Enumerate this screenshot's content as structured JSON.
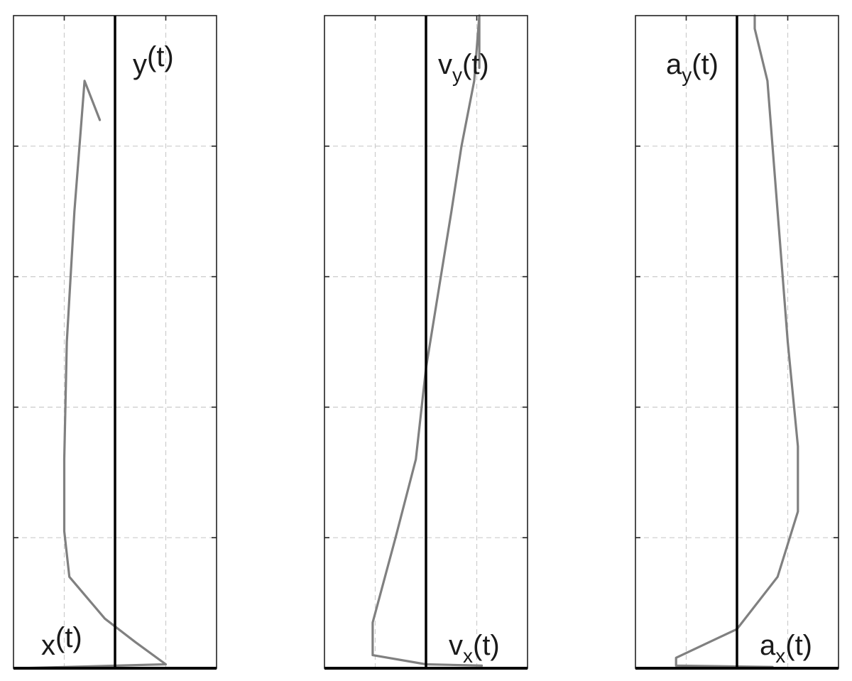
{
  "chart_data": [
    {
      "type": "line",
      "xlim": [
        -2,
        2
      ],
      "ylim": [
        0,
        5
      ],
      "grid": true,
      "x_label": {
        "base": "x",
        "sub": "",
        "tail": "(t)"
      },
      "y_label": {
        "base": "y",
        "sub": "",
        "tail": "(t)"
      },
      "series": [
        {
          "color": "#808080",
          "points": [
            [
              -1.9,
              0.0
            ],
            [
              1.0,
              0.03
            ],
            [
              0.4,
              0.2
            ],
            [
              -0.2,
              0.38
            ],
            [
              -0.9,
              0.7
            ],
            [
              -1.0,
              1.05
            ],
            [
              -1.0,
              1.6
            ],
            [
              -0.95,
              2.5
            ],
            [
              -0.8,
              3.5
            ],
            [
              -0.6,
              4.5
            ],
            [
              -0.3,
              4.2
            ]
          ]
        }
      ]
    },
    {
      "type": "line",
      "xlim": [
        -2,
        2
      ],
      "ylim": [
        0,
        5
      ],
      "grid": true,
      "x_label": {
        "base": "v",
        "sub": "x",
        "tail": "(t)"
      },
      "y_label": {
        "base": "v",
        "sub": "y",
        "tail": "(t)"
      },
      "series": [
        {
          "color": "#808080",
          "points": [
            [
              1.1,
              0.02
            ],
            [
              0.0,
              0.03
            ],
            [
              -1.05,
              0.1
            ],
            [
              -1.05,
              0.35
            ],
            [
              -0.6,
              1.0
            ],
            [
              -0.2,
              1.6
            ],
            [
              0.0,
              2.3
            ],
            [
              0.25,
              2.9
            ],
            [
              0.5,
              3.5
            ],
            [
              0.7,
              4.0
            ],
            [
              0.95,
              4.5
            ],
            [
              1.05,
              5.0
            ],
            [
              1.05,
              4.6
            ]
          ]
        }
      ]
    },
    {
      "type": "line",
      "xlim": [
        -2,
        2
      ],
      "ylim": [
        0,
        5
      ],
      "grid": true,
      "x_label": {
        "base": "a",
        "sub": "x",
        "tail": "(t)"
      },
      "y_label": {
        "base": "a",
        "sub": "y",
        "tail": "(t)"
      },
      "series": [
        {
          "color": "#808080",
          "points": [
            [
              0.7,
              0.01
            ],
            [
              -1.2,
              0.02
            ],
            [
              -1.2,
              0.08
            ],
            [
              0.0,
              0.3
            ],
            [
              0.8,
              0.7
            ],
            [
              1.2,
              1.2
            ],
            [
              1.2,
              1.7
            ],
            [
              1.0,
              2.5
            ],
            [
              0.8,
              3.5
            ],
            [
              0.6,
              4.5
            ],
            [
              0.35,
              4.9
            ],
            [
              0.35,
              5.0
            ]
          ]
        }
      ]
    }
  ]
}
